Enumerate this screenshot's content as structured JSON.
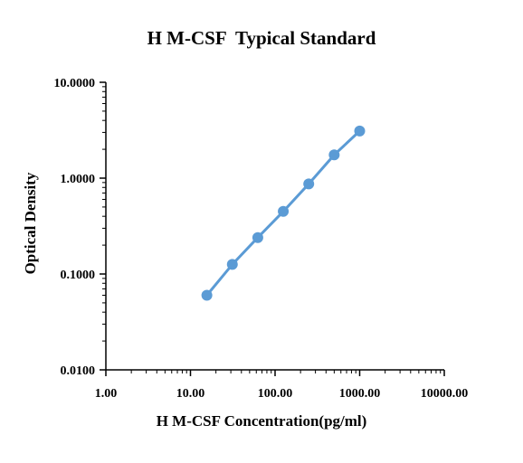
{
  "chart_data": {
    "type": "line",
    "title": "H M-CSF  Typical Standard",
    "xlabel": "H M-CSF Concentration(pg/ml)",
    "ylabel": "Optical Density",
    "x_scale": "log",
    "y_scale": "log",
    "xlim": [
      1,
      10000
    ],
    "ylim": [
      0.01,
      10
    ],
    "x_ticks": [
      "1.00",
      "10.00",
      "100.00",
      "1000.00",
      "10000.00"
    ],
    "y_ticks": [
      "0.0100",
      "0.1000",
      "1.0000",
      "10.0000"
    ],
    "grid": false,
    "series": [
      {
        "x": [
          15.625,
          31.25,
          62.5,
          125,
          250,
          500,
          1000
        ],
        "y": [
          0.06,
          0.126,
          0.24,
          0.45,
          0.87,
          1.75,
          3.1
        ],
        "color": "#5b9bd5"
      }
    ]
  }
}
